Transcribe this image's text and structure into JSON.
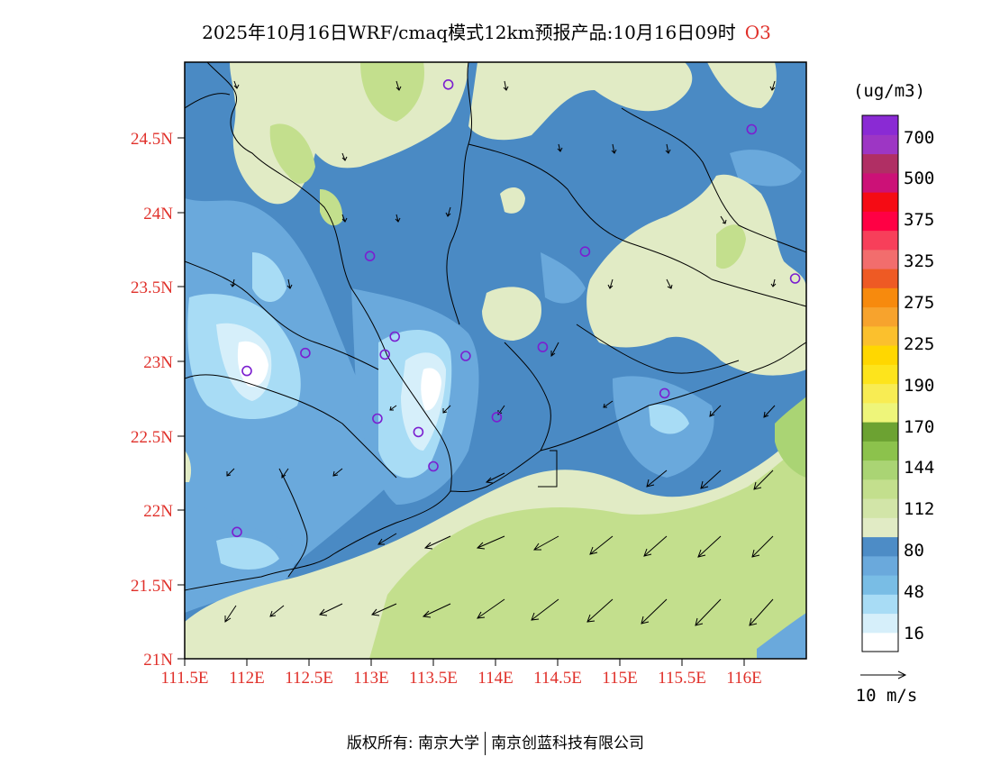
{
  "title": {
    "main": "2025年10月16日WRF/cmaq模式12km预报产品:10月16日09时",
    "species": "O3"
  },
  "axes": {
    "lat_labels": [
      "24.5N",
      "24N",
      "23.5N",
      "23N",
      "22.5N",
      "22N",
      "21.5N",
      "21N"
    ],
    "lon_labels": [
      "111.5E",
      "112E",
      "112.5E",
      "113E",
      "113.5E",
      "114E",
      "114.5E",
      "115E",
      "115.5E",
      "116E"
    ]
  },
  "colorbar": {
    "unit": "(ug/m3)",
    "colors": [
      "#ffffff",
      "#d6effa",
      "#a8dcf5",
      "#79bde5",
      "#6aa9dc",
      "#4d8cc6",
      "#e1ebc5",
      "#d2e5a8",
      "#c3df8d",
      "#aad474",
      "#8cc24c",
      "#6ca232",
      "#eef57a",
      "#f8ec53",
      "#fde41c",
      "#ffd700",
      "#fbc02d",
      "#f7a32d",
      "#f78a0d",
      "#ee5a24",
      "#f26d6d",
      "#f73f5a",
      "#ff0044",
      "#f50b14",
      "#cc1177",
      "#b02f64",
      "#9d36c4",
      "#8a2ad4"
    ],
    "labels": [
      "16",
      "48",
      "80",
      "112",
      "144",
      "170",
      "190",
      "225",
      "275",
      "325",
      "375",
      "500",
      "700"
    ],
    "wind_ref": "10 m/s"
  },
  "palette": {
    "low_white": "#ffffff",
    "low_light": "#d6effa",
    "low_mid": "#a8dcf5",
    "mid_blue": "#6aa9dc",
    "dark_blue": "#4a8ac4",
    "pale_green": "#e1ebc5",
    "green": "#c3df8d",
    "bright_green": "#aad474",
    "station_circle": "#7b1fd0",
    "label_red": "#e0302a"
  },
  "stations": [
    {
      "lon": 113.62,
      "lat": 24.85
    },
    {
      "lon": 116.06,
      "lat": 24.55
    },
    {
      "lon": 112.99,
      "lat": 23.7
    },
    {
      "lon": 114.72,
      "lat": 23.73
    },
    {
      "lon": 116.41,
      "lat": 23.55
    },
    {
      "lon": 113.19,
      "lat": 23.16
    },
    {
      "lon": 112.47,
      "lat": 23.05
    },
    {
      "lon": 113.11,
      "lat": 23.04
    },
    {
      "lon": 113.76,
      "lat": 23.03
    },
    {
      "lon": 114.38,
      "lat": 23.09
    },
    {
      "lon": 112.0,
      "lat": 22.93
    },
    {
      "lon": 115.36,
      "lat": 22.78
    },
    {
      "lon": 113.05,
      "lat": 22.61
    },
    {
      "lon": 114.01,
      "lat": 22.62
    },
    {
      "lon": 113.38,
      "lat": 22.52
    },
    {
      "lon": 113.5,
      "lat": 22.29
    },
    {
      "lon": 111.92,
      "lat": 21.85
    }
  ],
  "footer": {
    "left": "版权所有: 南京大学",
    "right": "南京创蓝科技有限公司"
  }
}
